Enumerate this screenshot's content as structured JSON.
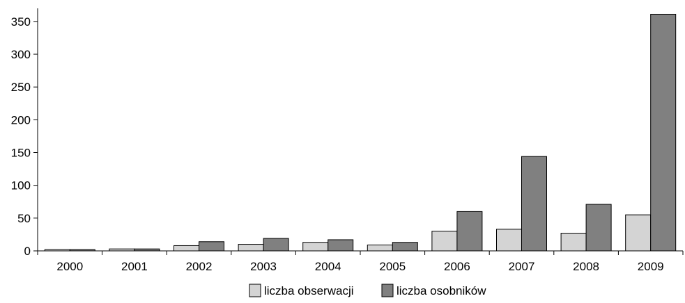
{
  "chart_data": {
    "type": "bar",
    "categories": [
      "2000",
      "2001",
      "2002",
      "2003",
      "2004",
      "2005",
      "2006",
      "2007",
      "2008",
      "2009"
    ],
    "series": [
      {
        "name": "liczba obserwacji",
        "values": [
          2,
          3,
          8,
          10,
          13,
          9,
          30,
          33,
          27,
          55
        ],
        "color": "#d4d4d4"
      },
      {
        "name": "liczba osobników",
        "values": [
          2,
          3,
          14,
          19,
          17,
          13,
          60,
          144,
          71,
          361
        ],
        "color": "#808080"
      }
    ],
    "ylim": [
      0,
      370
    ],
    "yticks": [
      "0",
      "50",
      "100",
      "150",
      "200",
      "250",
      "300",
      "350"
    ],
    "title": "",
    "xlabel": "",
    "ylabel": "",
    "grid": false,
    "legend": "bottom-center"
  }
}
